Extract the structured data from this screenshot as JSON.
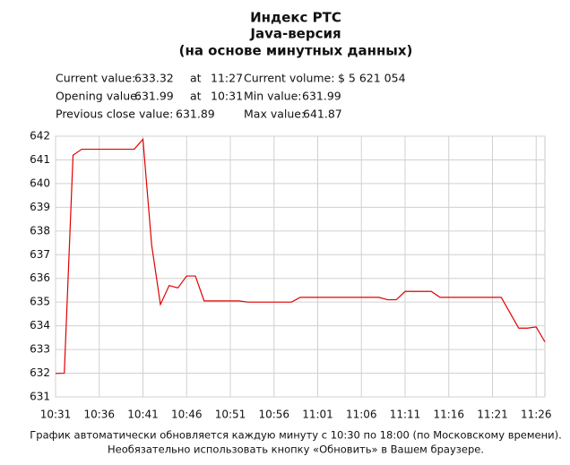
{
  "chart_data": {
    "type": "line",
    "title": [
      "Индекс РТС",
      "Java-версия",
      "(на основе минутных данных)"
    ],
    "info": [
      [
        "Current value:",
        "633.32",
        "at",
        "11:27",
        "Current volume:",
        "$ 5 621 054"
      ],
      [
        "Opening value:",
        "631.99",
        "at",
        "10:31",
        "Min value:",
        "631.99"
      ],
      [
        "Previous close value:",
        "631.89",
        "Max value:",
        "641.87"
      ]
    ],
    "categories": [
      "10:31",
      null,
      null,
      null,
      null,
      "10:36",
      null,
      null,
      null,
      null,
      "10:41",
      null,
      null,
      null,
      null,
      "10:46",
      null,
      null,
      null,
      null,
      "10:51",
      null,
      null,
      null,
      null,
      "10:56",
      null,
      null,
      null,
      null,
      "11:01",
      null,
      null,
      null,
      null,
      "11:06",
      null,
      null,
      null,
      null,
      "11:11",
      null,
      null,
      null,
      null,
      "11:16",
      null,
      null,
      null,
      null,
      "11:21",
      null,
      null,
      null,
      null,
      "11:26",
      null
    ],
    "series": [
      {
        "color": "#e00000",
        "values": [
          631.99,
          632.0,
          641.2,
          641.45,
          641.45,
          641.45,
          641.45,
          641.45,
          641.45,
          641.45,
          641.87,
          637.4,
          634.9,
          635.7,
          635.6,
          636.1,
          636.1,
          635.05,
          635.05,
          635.05,
          635.05,
          635.05,
          635.0,
          635.0,
          635.0,
          635.0,
          635.0,
          635.0,
          635.2,
          635.2,
          635.2,
          635.2,
          635.2,
          635.2,
          635.2,
          635.2,
          635.2,
          635.2,
          635.1,
          635.1,
          635.45,
          635.45,
          635.45,
          635.45,
          635.2,
          635.2,
          635.2,
          635.2,
          635.2,
          635.2,
          635.2,
          635.2,
          634.55,
          633.9,
          633.9,
          633.95,
          633.32
        ]
      }
    ],
    "ylim": [
      631,
      642
    ],
    "yticks": [
      631,
      632,
      633,
      634,
      635,
      636,
      637,
      638,
      639,
      640,
      641,
      642
    ],
    "grid": true,
    "footer": [
      "График автоматически обновляется каждую минуту с 10:30 по 18:00 (по Московскому времени).",
      "Необязательно использовать кнопку «Обновить» в Вашем браузере."
    ]
  }
}
